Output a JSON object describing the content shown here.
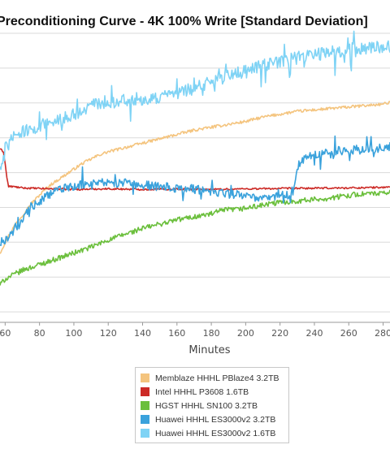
{
  "chart_data": {
    "type": "line",
    "title": "Preconditioning Curve - 4K 100% Write [Standard Deviation]",
    "xlabel": "Minutes",
    "ylabel": "",
    "x_tick_labels": [
      "60",
      "80",
      "100",
      "120",
      "140",
      "160",
      "180",
      "200",
      "220",
      "240",
      "260",
      "280"
    ],
    "xlim": [
      57,
      284
    ],
    "ylim": [
      0,
      100
    ],
    "grid": true,
    "legend_position": "bottom-center",
    "series": [
      {
        "name": "Memblaze HHHL PBlaze4 3.2TB",
        "color": "#f4c47e",
        "x": [
          57,
          62,
          66,
          70,
          75,
          80,
          85,
          90,
          95,
          100,
          105,
          110,
          115,
          120,
          130,
          140,
          150,
          160,
          170,
          180,
          190,
          200,
          210,
          220,
          230,
          240,
          250,
          260,
          270,
          280,
          284
        ],
        "y": [
          24,
          30,
          34,
          37,
          41,
          44,
          47,
          49,
          51,
          53,
          55,
          56.5,
          58,
          59,
          60.5,
          62,
          63.5,
          65,
          66.5,
          67.5,
          68.5,
          69.5,
          71,
          72,
          73,
          73.5,
          74,
          74.5,
          75,
          75.5,
          76
        ],
        "noise": 0.5
      },
      {
        "name": "Intel HHHL P3608 1.6TB",
        "color": "#cc2a26",
        "x": [
          57,
          59,
          60,
          61,
          62,
          64,
          70,
          80,
          90,
          100,
          120,
          140,
          160,
          180,
          200,
          220,
          240,
          260,
          280,
          284
        ],
        "y": [
          60,
          59,
          55,
          50,
          47,
          47,
          46.5,
          46.3,
          46.2,
          46,
          46.2,
          46,
          46.1,
          46,
          46.2,
          46.3,
          46.4,
          46.5,
          46.7,
          46.8
        ],
        "noise": 0.3
      },
      {
        "name": "HGST HHHL SN100 3.2TB",
        "color": "#6bbf3c",
        "x": [
          57,
          60,
          70,
          80,
          90,
          100,
          110,
          120,
          130,
          140,
          150,
          160,
          170,
          180,
          185,
          190,
          195,
          200,
          210,
          220,
          230,
          240,
          250,
          260,
          270,
          280,
          284
        ],
        "y": [
          13,
          15,
          18,
          20,
          22,
          24,
          26,
          28.5,
          30.5,
          32.5,
          34,
          35.5,
          36.5,
          37.5,
          38.5,
          39,
          39,
          39.5,
          40.5,
          41.5,
          42,
          42.5,
          43,
          44,
          44.5,
          44.5,
          45
        ],
        "noise": 0.9
      },
      {
        "name": "Huawei HHHL ES3000v2 3.2TB",
        "color": "#3aa2dc",
        "x": [
          57,
          60,
          65,
          70,
          75,
          80,
          85,
          90,
          95,
          100,
          105,
          110,
          115,
          120,
          140,
          160,
          180,
          200,
          210,
          220,
          225,
          228,
          229,
          230,
          232,
          240,
          250,
          260,
          270,
          280,
          284
        ],
        "y": [
          27,
          28,
          32,
          36,
          40,
          42,
          44,
          45.5,
          46.5,
          47,
          47.5,
          48,
          48.5,
          48.5,
          47.5,
          46.5,
          45.5,
          43.5,
          43.5,
          44,
          44,
          46,
          50,
          54,
          56,
          58,
          59,
          59.5,
          60,
          60.5,
          61
        ],
        "noise": 1.6
      },
      {
        "name": "Huawei HHHL ES3000v2 1.6TB",
        "color": "#7fd3f5",
        "x": [
          57,
          60,
          65,
          70,
          80,
          90,
          100,
          110,
          120,
          130,
          140,
          150,
          160,
          170,
          180,
          190,
          200,
          210,
          220,
          230,
          240,
          250,
          260,
          270,
          280,
          284
        ],
        "y": [
          54,
          60,
          64,
          66,
          68,
          70,
          72,
          75,
          76,
          77,
          77.5,
          78,
          79,
          81,
          83,
          85.5,
          87,
          89,
          90,
          91.5,
          92.5,
          93.5,
          94.5,
          95,
          95,
          95.5
        ],
        "noise": 2.2
      }
    ]
  }
}
